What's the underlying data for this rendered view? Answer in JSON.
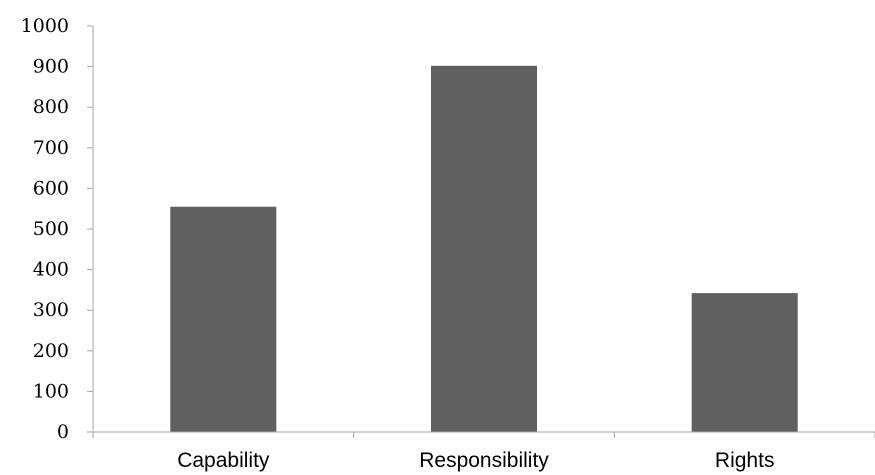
{
  "chart_data": {
    "type": "bar",
    "title": "",
    "xlabel": "",
    "ylabel": "",
    "categories": [
      "Capability",
      "Responsibility",
      "Rights"
    ],
    "values": [
      555,
      902,
      342
    ],
    "ylim": [
      0,
      1000
    ],
    "yticks": [
      "0",
      "100",
      "200",
      "300",
      "400",
      "500",
      "600",
      "700",
      "800",
      "900",
      "1000"
    ],
    "grid": false,
    "legend": "none",
    "bar_color": "#606060",
    "axis_color": "#a6a6a6"
  }
}
